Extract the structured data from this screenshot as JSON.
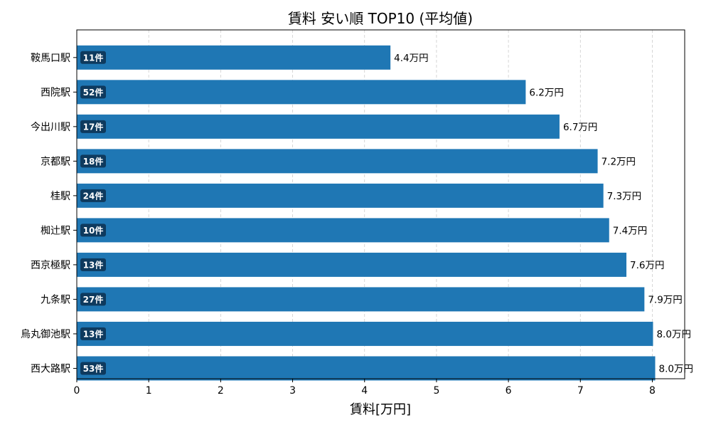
{
  "chart_data": {
    "type": "bar",
    "orientation": "horizontal",
    "title": "賃料 安い順 TOP10 (平均値)",
    "xlabel": "賃料[万円]",
    "ylabel": "",
    "xlim": [
      0,
      8.45
    ],
    "x_ticks": [
      0,
      1,
      2,
      3,
      4,
      5,
      6,
      7,
      8
    ],
    "grid": "x-dashed",
    "categories": [
      "鞍馬口駅",
      "西院駅",
      "今出川駅",
      "京都駅",
      "桂駅",
      "椥辻駅",
      "西京極駅",
      "九条駅",
      "烏丸御池駅",
      "西大路駅"
    ],
    "values": [
      4.36,
      6.24,
      6.71,
      7.24,
      7.32,
      7.4,
      7.64,
      7.89,
      8.01,
      8.04
    ],
    "value_labels": [
      "4.4万円",
      "6.2万円",
      "6.7万円",
      "7.2万円",
      "7.3万円",
      "7.4万円",
      "7.6万円",
      "7.9万円",
      "8.0万円",
      "8.0万円"
    ],
    "count_labels": [
      "11件",
      "52件",
      "17件",
      "18件",
      "24件",
      "10件",
      "13件",
      "27件",
      "13件",
      "53件"
    ],
    "colors": {
      "bar": "#1f77b4",
      "badge": "#0e3a5e",
      "badge_text": "#ffffff",
      "grid": "#cccccc",
      "axis": "#000000"
    }
  }
}
